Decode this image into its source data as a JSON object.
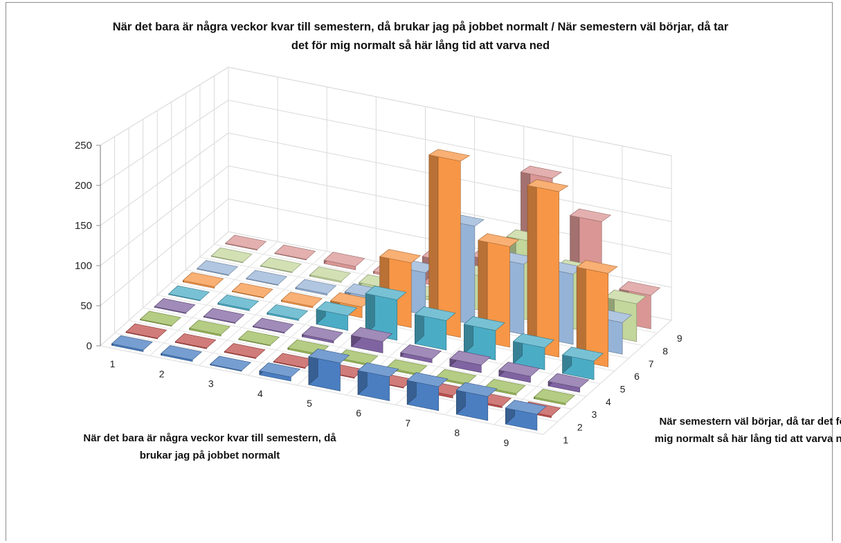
{
  "chart_data": {
    "type": "bar3d",
    "title": "När det bara är några veckor kvar till semestern, då brukar jag på jobbet normalt / När semestern väl börjar, då tar det för mig normalt så här lång tid att varva ned",
    "xlabel": "När det bara är några veckor kvar till semestern, då brukar jag på jobbet normalt",
    "ylabel": "När semestern väl börjar, då tar det för mig normalt så här lång tid att varva ned",
    "x_categories": [
      "1",
      "2",
      "3",
      "4",
      "5",
      "6",
      "7",
      "8",
      "9"
    ],
    "y_categories": [
      "1",
      "2",
      "3",
      "4",
      "5",
      "6",
      "7",
      "8",
      "9"
    ],
    "zlim": [
      0,
      250
    ],
    "z_ticks": [
      0,
      50,
      100,
      150,
      200,
      250
    ],
    "grid": true,
    "series_colors": [
      "#4a7ec1",
      "#c0504d",
      "#9bbb59",
      "#8064a2",
      "#4bacc6",
      "#f79646",
      "#95b3d7",
      "#c3d69b",
      "#d99694"
    ],
    "values": [
      [
        2,
        1,
        1,
        1,
        1,
        2,
        1,
        1,
        1
      ],
      [
        2,
        1,
        2,
        1,
        2,
        1,
        1,
        1,
        1
      ],
      [
        1,
        1,
        1,
        1,
        2,
        2,
        2,
        2,
        5
      ],
      [
        5,
        1,
        2,
        3,
        20,
        15,
        10,
        5,
        3
      ],
      [
        35,
        1,
        2,
        15,
        55,
        90,
        60,
        5,
        40
      ],
      [
        30,
        1,
        2,
        5,
        40,
        245,
        140,
        50,
        55
      ],
      [
        30,
        3,
        2,
        10,
        40,
        140,
        100,
        115,
        195
      ],
      [
        30,
        2,
        2,
        8,
        30,
        230,
        100,
        85,
        145
      ],
      [
        20,
        2,
        2,
        6,
        25,
        130,
        45,
        55,
        50
      ]
    ]
  }
}
